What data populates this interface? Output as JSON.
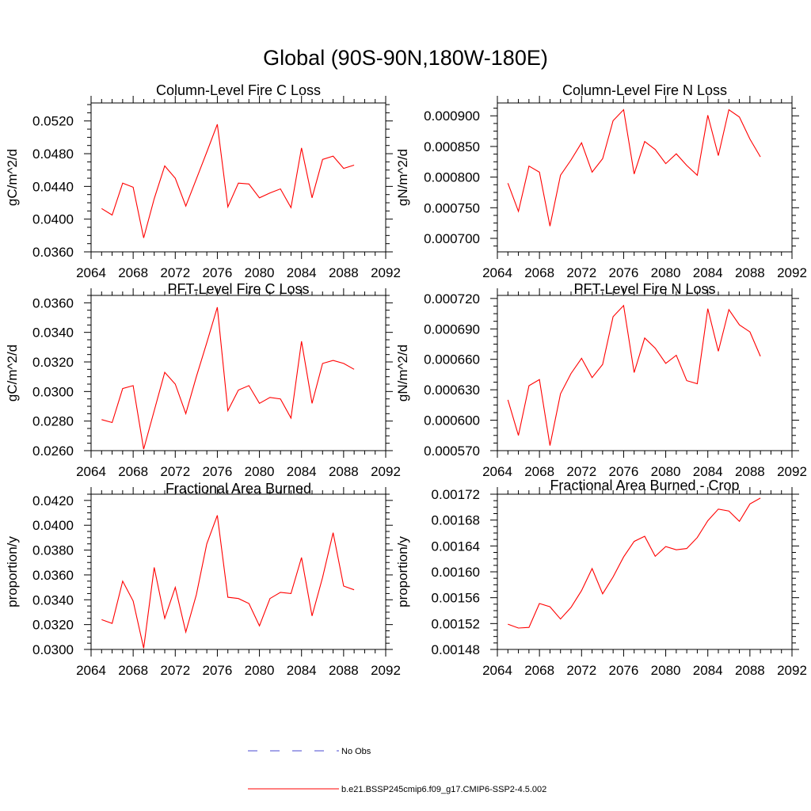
{
  "figure": {
    "title": "Global (90S-90N,180W-180E)"
  },
  "legend": [
    {
      "label": "No Obs",
      "color": "#4a4ad0",
      "dash": true
    },
    {
      "label": "b.e21.BSSP245cmip6.f09_g17.CMIP6-SSP2-4.5.002",
      "color": "#ff0000",
      "dash": false
    }
  ],
  "chart_data": [
    {
      "type": "line",
      "title": "Column-Level Fire C Loss",
      "ylabel": "gC/m^2/d",
      "xlim": [
        2064,
        2092
      ],
      "ylim": [
        0.036,
        0.0542
      ],
      "x_ticks": [
        "2064",
        "2068",
        "2072",
        "2076",
        "2080",
        "2084",
        "2088",
        "2092"
      ],
      "y_ticks": [
        "0.0360",
        "0.0400",
        "0.0440",
        "0.0480",
        "0.0520"
      ],
      "color": "#ff0000",
      "x": [
        2065,
        2066,
        2067,
        2068,
        2069,
        2070,
        2071,
        2072,
        2073,
        2074,
        2075,
        2076,
        2077,
        2078,
        2079,
        2080,
        2081,
        2082,
        2083,
        2084,
        2085,
        2086,
        2087,
        2088,
        2089
      ],
      "values": [
        0.0413,
        0.0405,
        0.0444,
        0.0439,
        0.0377,
        0.0425,
        0.0465,
        0.045,
        0.0416,
        0.0449,
        0.0482,
        0.0516,
        0.0415,
        0.0444,
        0.0443,
        0.0426,
        0.0432,
        0.0437,
        0.0414,
        0.0487,
        0.0426,
        0.0473,
        0.0477,
        0.0462,
        0.0466
      ]
    },
    {
      "type": "line",
      "title": "Column-Level Fire N Loss",
      "ylabel": "gN/m^2/d",
      "xlim": [
        2064,
        2092
      ],
      "ylim": [
        0.000678,
        0.000921
      ],
      "x_ticks": [
        "2064",
        "2068",
        "2072",
        "2076",
        "2080",
        "2084",
        "2088",
        "2092"
      ],
      "y_ticks": [
        "0.000700",
        "0.000750",
        "0.000800",
        "0.000850",
        "0.000900"
      ],
      "color": "#ff0000",
      "x": [
        2065,
        2066,
        2067,
        2068,
        2069,
        2070,
        2071,
        2072,
        2073,
        2074,
        2075,
        2076,
        2077,
        2078,
        2079,
        2080,
        2081,
        2082,
        2083,
        2084,
        2085,
        2086,
        2087,
        2088,
        2089
      ],
      "values": [
        0.00079,
        0.000744,
        0.000818,
        0.000808,
        0.00072,
        0.000803,
        0.000828,
        0.000856,
        0.000808,
        0.00083,
        0.000892,
        0.00091,
        0.000805,
        0.000858,
        0.000845,
        0.000822,
        0.000838,
        0.000819,
        0.000803,
        0.000901,
        0.000835,
        0.00091,
        0.000898,
        0.000862,
        0.000833
      ]
    },
    {
      "type": "line",
      "title": "PFT-Level Fire C Loss",
      "ylabel": "gC/m^2/d",
      "xlim": [
        2064,
        2092
      ],
      "ylim": [
        0.026,
        0.0365
      ],
      "x_ticks": [
        "2064",
        "2068",
        "2072",
        "2076",
        "2080",
        "2084",
        "2088",
        "2092"
      ],
      "y_ticks": [
        "0.0260",
        "0.0280",
        "0.0300",
        "0.0320",
        "0.0340",
        "0.0360"
      ],
      "color": "#ff0000",
      "x": [
        2065,
        2066,
        2067,
        2068,
        2069,
        2070,
        2071,
        2072,
        2073,
        2074,
        2075,
        2076,
        2077,
        2078,
        2079,
        2080,
        2081,
        2082,
        2083,
        2084,
        2085,
        2086,
        2087,
        2088,
        2089
      ],
      "values": [
        0.0281,
        0.0279,
        0.0302,
        0.0304,
        0.0261,
        0.0287,
        0.0313,
        0.0305,
        0.0285,
        0.031,
        0.0333,
        0.0357,
        0.0287,
        0.0301,
        0.0304,
        0.0292,
        0.0296,
        0.0295,
        0.0282,
        0.0334,
        0.0292,
        0.0319,
        0.0321,
        0.0319,
        0.0315
      ]
    },
    {
      "type": "line",
      "title": "PFT-Level Fire N Loss",
      "ylabel": "gN/m^2/d",
      "xlim": [
        2064,
        2092
      ],
      "ylim": [
        0.00057,
        0.000723
      ],
      "x_ticks": [
        "2064",
        "2068",
        "2072",
        "2076",
        "2080",
        "2084",
        "2088",
        "2092"
      ],
      "y_ticks": [
        "0.000570",
        "0.000600",
        "0.000630",
        "0.000660",
        "0.000690",
        "0.000720"
      ],
      "color": "#ff0000",
      "x": [
        2065,
        2066,
        2067,
        2068,
        2069,
        2070,
        2071,
        2072,
        2073,
        2074,
        2075,
        2076,
        2077,
        2078,
        2079,
        2080,
        2081,
        2082,
        2083,
        2084,
        2085,
        2086,
        2087,
        2088,
        2089
      ],
      "values": [
        0.00062,
        0.000585,
        0.000634,
        0.00064,
        0.000575,
        0.000626,
        0.000646,
        0.000661,
        0.000642,
        0.000655,
        0.000702,
        0.000713,
        0.000647,
        0.000681,
        0.000671,
        0.000656,
        0.000664,
        0.000639,
        0.000636,
        0.00071,
        0.000668,
        0.000709,
        0.000694,
        0.000687,
        0.000663
      ]
    },
    {
      "type": "line",
      "title": "Fractional Area Burned",
      "ylabel": "proportion/y",
      "xlim": [
        2064,
        2092
      ],
      "ylim": [
        0.03,
        0.0425
      ],
      "x_ticks": [
        "2064",
        "2068",
        "2072",
        "2076",
        "2080",
        "2084",
        "2088",
        "2092"
      ],
      "y_ticks": [
        "0.0300",
        "0.0320",
        "0.0340",
        "0.0360",
        "0.0380",
        "0.0400",
        "0.0420"
      ],
      "color": "#ff0000",
      "x": [
        2065,
        2066,
        2067,
        2068,
        2069,
        2070,
        2071,
        2072,
        2073,
        2074,
        2075,
        2076,
        2077,
        2078,
        2079,
        2080,
        2081,
        2082,
        2083,
        2084,
        2085,
        2086,
        2087,
        2088,
        2089
      ],
      "values": [
        0.0324,
        0.0321,
        0.0355,
        0.0339,
        0.0301,
        0.0366,
        0.0325,
        0.035,
        0.0314,
        0.0344,
        0.0385,
        0.0408,
        0.0342,
        0.0341,
        0.0337,
        0.0319,
        0.0341,
        0.0346,
        0.0345,
        0.0374,
        0.0327,
        0.0358,
        0.0394,
        0.0351,
        0.0348
      ]
    },
    {
      "type": "line",
      "title": "Fractional Area Burned - Crop",
      "ylabel": "proportion/y",
      "xlim": [
        2064,
        2092
      ],
      "ylim": [
        0.00148,
        0.00172
      ],
      "x_ticks": [
        "2064",
        "2068",
        "2072",
        "2076",
        "2080",
        "2084",
        "2088",
        "2092"
      ],
      "y_ticks": [
        "0.00148",
        "0.00152",
        "0.00156",
        "0.00160",
        "0.00164",
        "0.00168",
        "0.00172"
      ],
      "color": "#ff0000",
      "x": [
        2065,
        2066,
        2067,
        2068,
        2069,
        2070,
        2071,
        2072,
        2073,
        2074,
        2075,
        2076,
        2077,
        2078,
        2079,
        2080,
        2081,
        2082,
        2083,
        2084,
        2085,
        2086,
        2087,
        2088,
        2089
      ],
      "values": [
        0.001519,
        0.001513,
        0.001514,
        0.001551,
        0.001546,
        0.001527,
        0.001545,
        0.001571,
        0.001605,
        0.001566,
        0.001592,
        0.001623,
        0.001647,
        0.001655,
        0.001624,
        0.001639,
        0.001634,
        0.001636,
        0.001653,
        0.001679,
        0.001697,
        0.001694,
        0.001678,
        0.001705,
        0.001714
      ]
    }
  ]
}
